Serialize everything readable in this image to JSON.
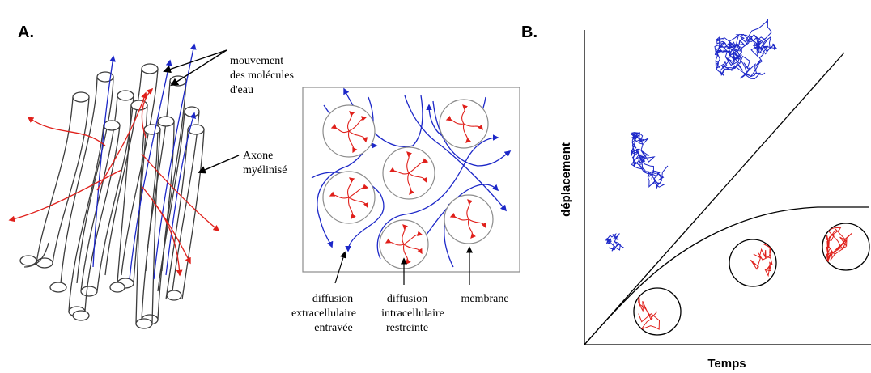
{
  "panel_a": {
    "letter": "A.",
    "label_water_1": "mouvement",
    "label_water_2": "des molécules",
    "label_water_3": "d'eau",
    "label_axon_1": "Axone",
    "label_axon_2": "myélinisé",
    "label_extra_1": "diffusion",
    "label_extra_2": "extracellulaire",
    "label_extra_3": "entravée",
    "label_intra_1": "diffusion",
    "label_intra_2": "intracellulaire",
    "label_intra_3": "restreinte",
    "label_membrane": "membrane"
  },
  "panel_b": {
    "letter": "B.",
    "ylabel": "déplacement",
    "xlabel": "Temps"
  },
  "colors": {
    "restricted": "#e0201b",
    "free": "#1c27c8",
    "outline": "#3c3c3c"
  }
}
